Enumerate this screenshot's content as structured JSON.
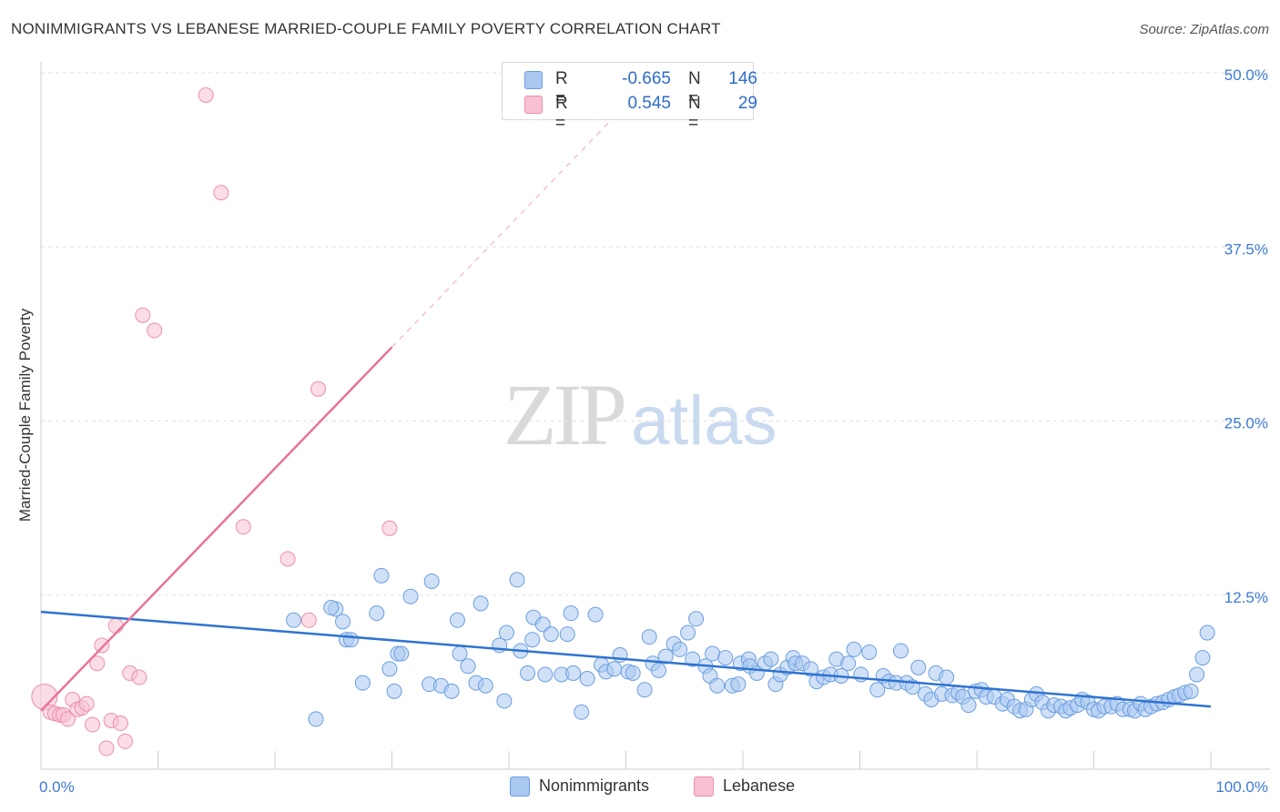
{
  "header": {
    "title": "NONIMMIGRANTS VS LEBANESE MARRIED-COUPLE FAMILY POVERTY CORRELATION CHART",
    "source": "Source: ZipAtlas.com"
  },
  "legend": {
    "rows": [
      {
        "r_label": "R =",
        "r_value": "-0.665",
        "n_label": "N =",
        "n_value": "146"
      },
      {
        "r_label": "R =",
        "r_value": "0.545",
        "n_label": "N =",
        "n_value": "29"
      }
    ]
  },
  "bottom_legend": {
    "series1": "Nonimmigrants",
    "series2": "Lebanese"
  },
  "watermark": {
    "zip": "ZIP",
    "atlas": "atlas"
  },
  "colors": {
    "blue_fill": "#a9c8f0",
    "blue_stroke": "#6b9ee0",
    "blue_line": "#2f73d0",
    "pink_fill": "#f7c1d2",
    "pink_stroke": "#ec8fad",
    "pink_line": "#e8739a",
    "grid": "#e0e0e0",
    "tick_label": "#3d7bd6"
  },
  "chart_data": {
    "type": "scatter",
    "title": "NONIMMIGRANTS VS LEBANESE MARRIED-COUPLE FAMILY POVERTY CORRELATION CHART",
    "xlabel": "",
    "ylabel": "Married-Couple Family Poverty",
    "xlim": [
      0,
      100
    ],
    "ylim": [
      0,
      50
    ],
    "x_tick_labels": [
      {
        "value": 0,
        "label": "0.0%"
      },
      {
        "value": 100,
        "label": "100.0%"
      }
    ],
    "y_tick_labels": [
      {
        "value": 12.5,
        "label": "12.5%"
      },
      {
        "value": 25,
        "label": "25.0%"
      },
      {
        "value": 37.5,
        "label": "37.5%"
      },
      {
        "value": 50,
        "label": "50.0%"
      }
    ],
    "series": [
      {
        "name": "Nonimmigrants",
        "r": -0.665,
        "n": 146,
        "trend": {
          "x0": 0,
          "y0": 11.3,
          "x1": 100,
          "y1": 4.5
        },
        "points": [
          [
            21.6,
            10.7
          ],
          [
            23.5,
            3.6
          ],
          [
            25.2,
            11.5
          ],
          [
            24.8,
            11.6
          ],
          [
            25.8,
            10.6
          ],
          [
            26.1,
            9.3
          ],
          [
            27.5,
            6.2
          ],
          [
            26.5,
            9.3
          ],
          [
            28.7,
            11.2
          ],
          [
            29.1,
            13.9
          ],
          [
            29.8,
            7.2
          ],
          [
            30.5,
            8.3
          ],
          [
            30.8,
            8.3
          ],
          [
            31.6,
            12.4
          ],
          [
            33.4,
            13.5
          ],
          [
            33.2,
            6.1
          ],
          [
            34.2,
            6.0
          ],
          [
            35.1,
            5.6
          ],
          [
            35.6,
            10.7
          ],
          [
            35.8,
            8.3
          ],
          [
            36.5,
            7.4
          ],
          [
            37.6,
            11.9
          ],
          [
            37.2,
            6.2
          ],
          [
            38.0,
            6.0
          ],
          [
            39.2,
            8.9
          ],
          [
            39.6,
            4.9
          ],
          [
            39.8,
            9.8
          ],
          [
            40.7,
            13.6
          ],
          [
            41.0,
            8.5
          ],
          [
            42.0,
            9.3
          ],
          [
            42.1,
            10.9
          ],
          [
            42.9,
            10.4
          ],
          [
            43.6,
            9.7
          ],
          [
            43.1,
            6.8
          ],
          [
            44.5,
            6.8
          ],
          [
            45.3,
            11.2
          ],
          [
            45.5,
            6.9
          ],
          [
            45.0,
            9.7
          ],
          [
            46.2,
            4.1
          ],
          [
            46.7,
            6.5
          ],
          [
            47.4,
            11.1
          ],
          [
            47.9,
            7.5
          ],
          [
            48.3,
            7.0
          ],
          [
            49.0,
            7.2
          ],
          [
            49.5,
            8.2
          ],
          [
            50.2,
            7.0
          ],
          [
            50.6,
            6.9
          ],
          [
            51.6,
            5.7
          ],
          [
            52.0,
            9.5
          ],
          [
            52.3,
            7.6
          ],
          [
            52.8,
            7.1
          ],
          [
            53.4,
            8.1
          ],
          [
            54.1,
            9.0
          ],
          [
            54.6,
            8.6
          ],
          [
            55.3,
            9.8
          ],
          [
            56.0,
            10.8
          ],
          [
            56.8,
            7.4
          ],
          [
            57.2,
            6.7
          ],
          [
            57.8,
            6.0
          ],
          [
            57.4,
            8.3
          ],
          [
            58.5,
            8.0
          ],
          [
            59.1,
            6.0
          ],
          [
            59.6,
            6.1
          ],
          [
            59.8,
            7.6
          ],
          [
            60.5,
            7.9
          ],
          [
            60.6,
            7.4
          ],
          [
            61.2,
            6.9
          ],
          [
            61.9,
            7.6
          ],
          [
            62.4,
            7.9
          ],
          [
            62.8,
            6.1
          ],
          [
            63.2,
            6.8
          ],
          [
            63.8,
            7.3
          ],
          [
            64.3,
            8.0
          ],
          [
            64.5,
            7.6
          ],
          [
            65.1,
            7.6
          ],
          [
            65.8,
            7.2
          ],
          [
            66.3,
            6.3
          ],
          [
            66.9,
            6.6
          ],
          [
            67.5,
            6.8
          ],
          [
            68.0,
            7.9
          ],
          [
            68.4,
            6.7
          ],
          [
            69.0,
            7.6
          ],
          [
            69.5,
            8.6
          ],
          [
            70.1,
            6.8
          ],
          [
            70.8,
            8.4
          ],
          [
            71.5,
            5.7
          ],
          [
            72.0,
            6.7
          ],
          [
            72.5,
            6.3
          ],
          [
            73.1,
            6.2
          ],
          [
            73.5,
            8.5
          ],
          [
            74.0,
            6.2
          ],
          [
            74.5,
            5.9
          ],
          [
            75.0,
            7.3
          ],
          [
            75.6,
            5.4
          ],
          [
            76.1,
            5.0
          ],
          [
            76.5,
            6.9
          ],
          [
            77.0,
            5.4
          ],
          [
            77.4,
            6.6
          ],
          [
            77.9,
            5.3
          ],
          [
            78.4,
            5.5
          ],
          [
            78.8,
            5.2
          ],
          [
            79.3,
            4.6
          ],
          [
            79.9,
            5.6
          ],
          [
            80.4,
            5.7
          ],
          [
            80.8,
            5.2
          ],
          [
            81.5,
            5.2
          ],
          [
            82.2,
            4.7
          ],
          [
            82.6,
            5.0
          ],
          [
            83.2,
            4.5
          ],
          [
            83.7,
            4.2
          ],
          [
            84.2,
            4.3
          ],
          [
            84.7,
            5.0
          ],
          [
            85.1,
            5.4
          ],
          [
            85.6,
            4.8
          ],
          [
            86.1,
            4.2
          ],
          [
            86.6,
            4.6
          ],
          [
            87.2,
            4.5
          ],
          [
            87.6,
            4.2
          ],
          [
            88.0,
            4.4
          ],
          [
            88.6,
            4.6
          ],
          [
            89.0,
            5.0
          ],
          [
            89.5,
            4.8
          ],
          [
            90.0,
            4.3
          ],
          [
            90.4,
            4.2
          ],
          [
            90.9,
            4.5
          ],
          [
            91.5,
            4.5
          ],
          [
            92.0,
            4.7
          ],
          [
            92.5,
            4.3
          ],
          [
            93.1,
            4.3
          ],
          [
            93.5,
            4.2
          ],
          [
            94.0,
            4.7
          ],
          [
            94.4,
            4.3
          ],
          [
            94.9,
            4.5
          ],
          [
            95.4,
            4.7
          ],
          [
            95.9,
            4.8
          ],
          [
            96.4,
            5.0
          ],
          [
            96.9,
            5.2
          ],
          [
            97.3,
            5.3
          ],
          [
            97.8,
            5.5
          ],
          [
            98.3,
            5.6
          ],
          [
            98.8,
            6.8
          ],
          [
            99.3,
            8.0
          ],
          [
            99.7,
            9.8
          ],
          [
            55.7,
            7.9
          ],
          [
            41.6,
            6.9
          ],
          [
            30.2,
            5.6
          ]
        ]
      },
      {
        "name": "Lebanese",
        "r": 0.545,
        "n": 29,
        "trend": {
          "x0": 0,
          "y0": 4.2,
          "x1": 30,
          "y1": 30.3
        },
        "trend_dashed": {
          "x0": 30,
          "y0": 30.3,
          "x1": 48.5,
          "y1": 46.4
        },
        "points": [
          [
            0.3,
            5.2
          ],
          [
            0.8,
            4.1
          ],
          [
            1.2,
            4.0
          ],
          [
            1.6,
            3.9
          ],
          [
            1.9,
            3.9
          ],
          [
            2.3,
            3.6
          ],
          [
            2.7,
            5.0
          ],
          [
            3.1,
            4.3
          ],
          [
            3.5,
            4.4
          ],
          [
            3.9,
            4.7
          ],
          [
            4.4,
            3.2
          ],
          [
            4.8,
            7.6
          ],
          [
            5.2,
            8.9
          ],
          [
            5.6,
            1.5
          ],
          [
            6.0,
            3.5
          ],
          [
            6.4,
            10.3
          ],
          [
            6.8,
            3.3
          ],
          [
            7.2,
            2.0
          ],
          [
            7.6,
            6.9
          ],
          [
            8.4,
            6.6
          ],
          [
            8.7,
            32.6
          ],
          [
            9.7,
            31.5
          ],
          [
            14.1,
            48.4
          ],
          [
            15.4,
            41.4
          ],
          [
            17.3,
            17.4
          ],
          [
            21.1,
            15.1
          ],
          [
            22.9,
            10.7
          ],
          [
            23.7,
            27.3
          ],
          [
            29.8,
            17.3
          ]
        ]
      }
    ]
  }
}
